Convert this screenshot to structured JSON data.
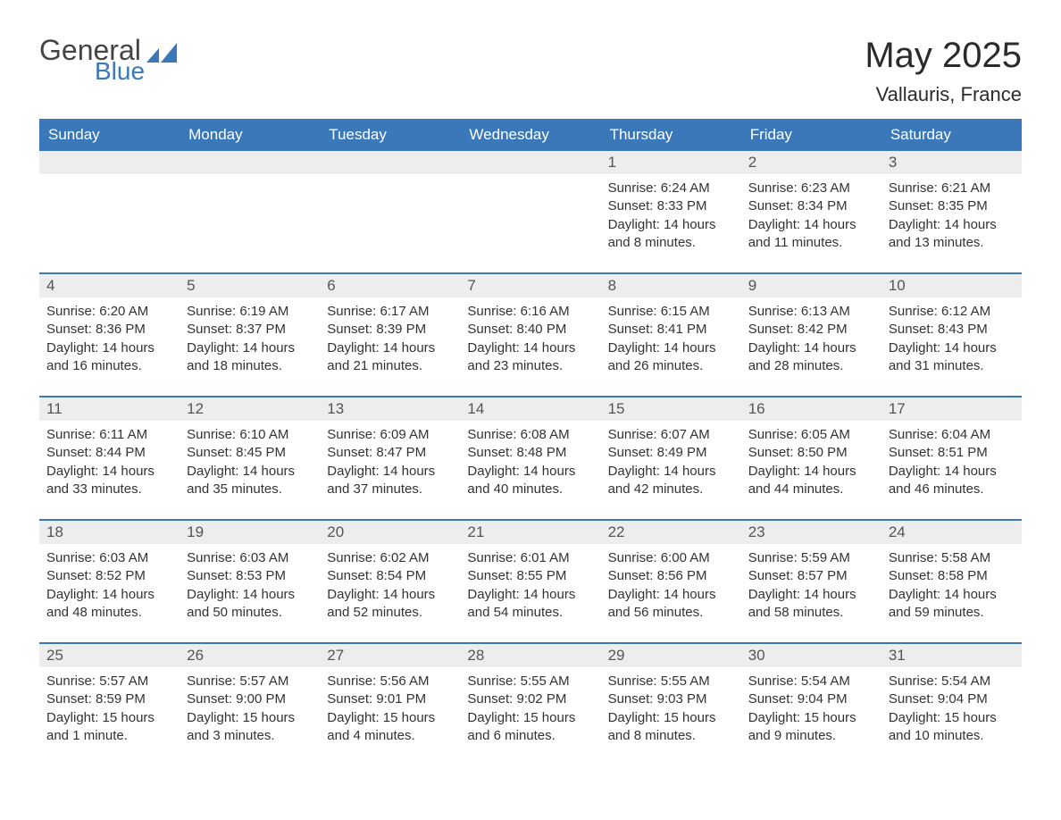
{
  "logo": {
    "general": "General",
    "blue": "Blue",
    "icon_color": "#3a78b9"
  },
  "title": "May 2025",
  "location": "Vallauris, France",
  "colors": {
    "header_bg": "#3a78b9",
    "header_text": "#ffffff",
    "daynum_bg": "#ededed",
    "text": "#333333",
    "rule": "#3a78b9"
  },
  "weekdays": [
    "Sunday",
    "Monday",
    "Tuesday",
    "Wednesday",
    "Thursday",
    "Friday",
    "Saturday"
  ],
  "weeks": [
    [
      {
        "n": "",
        "sr": "",
        "ss": "",
        "dl": ""
      },
      {
        "n": "",
        "sr": "",
        "ss": "",
        "dl": ""
      },
      {
        "n": "",
        "sr": "",
        "ss": "",
        "dl": ""
      },
      {
        "n": "",
        "sr": "",
        "ss": "",
        "dl": ""
      },
      {
        "n": "1",
        "sr": "Sunrise: 6:24 AM",
        "ss": "Sunset: 8:33 PM",
        "dl": "Daylight: 14 hours and 8 minutes."
      },
      {
        "n": "2",
        "sr": "Sunrise: 6:23 AM",
        "ss": "Sunset: 8:34 PM",
        "dl": "Daylight: 14 hours and 11 minutes."
      },
      {
        "n": "3",
        "sr": "Sunrise: 6:21 AM",
        "ss": "Sunset: 8:35 PM",
        "dl": "Daylight: 14 hours and 13 minutes."
      }
    ],
    [
      {
        "n": "4",
        "sr": "Sunrise: 6:20 AM",
        "ss": "Sunset: 8:36 PM",
        "dl": "Daylight: 14 hours and 16 minutes."
      },
      {
        "n": "5",
        "sr": "Sunrise: 6:19 AM",
        "ss": "Sunset: 8:37 PM",
        "dl": "Daylight: 14 hours and 18 minutes."
      },
      {
        "n": "6",
        "sr": "Sunrise: 6:17 AM",
        "ss": "Sunset: 8:39 PM",
        "dl": "Daylight: 14 hours and 21 minutes."
      },
      {
        "n": "7",
        "sr": "Sunrise: 6:16 AM",
        "ss": "Sunset: 8:40 PM",
        "dl": "Daylight: 14 hours and 23 minutes."
      },
      {
        "n": "8",
        "sr": "Sunrise: 6:15 AM",
        "ss": "Sunset: 8:41 PM",
        "dl": "Daylight: 14 hours and 26 minutes."
      },
      {
        "n": "9",
        "sr": "Sunrise: 6:13 AM",
        "ss": "Sunset: 8:42 PM",
        "dl": "Daylight: 14 hours and 28 minutes."
      },
      {
        "n": "10",
        "sr": "Sunrise: 6:12 AM",
        "ss": "Sunset: 8:43 PM",
        "dl": "Daylight: 14 hours and 31 minutes."
      }
    ],
    [
      {
        "n": "11",
        "sr": "Sunrise: 6:11 AM",
        "ss": "Sunset: 8:44 PM",
        "dl": "Daylight: 14 hours and 33 minutes."
      },
      {
        "n": "12",
        "sr": "Sunrise: 6:10 AM",
        "ss": "Sunset: 8:45 PM",
        "dl": "Daylight: 14 hours and 35 minutes."
      },
      {
        "n": "13",
        "sr": "Sunrise: 6:09 AM",
        "ss": "Sunset: 8:47 PM",
        "dl": "Daylight: 14 hours and 37 minutes."
      },
      {
        "n": "14",
        "sr": "Sunrise: 6:08 AM",
        "ss": "Sunset: 8:48 PM",
        "dl": "Daylight: 14 hours and 40 minutes."
      },
      {
        "n": "15",
        "sr": "Sunrise: 6:07 AM",
        "ss": "Sunset: 8:49 PM",
        "dl": "Daylight: 14 hours and 42 minutes."
      },
      {
        "n": "16",
        "sr": "Sunrise: 6:05 AM",
        "ss": "Sunset: 8:50 PM",
        "dl": "Daylight: 14 hours and 44 minutes."
      },
      {
        "n": "17",
        "sr": "Sunrise: 6:04 AM",
        "ss": "Sunset: 8:51 PM",
        "dl": "Daylight: 14 hours and 46 minutes."
      }
    ],
    [
      {
        "n": "18",
        "sr": "Sunrise: 6:03 AM",
        "ss": "Sunset: 8:52 PM",
        "dl": "Daylight: 14 hours and 48 minutes."
      },
      {
        "n": "19",
        "sr": "Sunrise: 6:03 AM",
        "ss": "Sunset: 8:53 PM",
        "dl": "Daylight: 14 hours and 50 minutes."
      },
      {
        "n": "20",
        "sr": "Sunrise: 6:02 AM",
        "ss": "Sunset: 8:54 PM",
        "dl": "Daylight: 14 hours and 52 minutes."
      },
      {
        "n": "21",
        "sr": "Sunrise: 6:01 AM",
        "ss": "Sunset: 8:55 PM",
        "dl": "Daylight: 14 hours and 54 minutes."
      },
      {
        "n": "22",
        "sr": "Sunrise: 6:00 AM",
        "ss": "Sunset: 8:56 PM",
        "dl": "Daylight: 14 hours and 56 minutes."
      },
      {
        "n": "23",
        "sr": "Sunrise: 5:59 AM",
        "ss": "Sunset: 8:57 PM",
        "dl": "Daylight: 14 hours and 58 minutes."
      },
      {
        "n": "24",
        "sr": "Sunrise: 5:58 AM",
        "ss": "Sunset: 8:58 PM",
        "dl": "Daylight: 14 hours and 59 minutes."
      }
    ],
    [
      {
        "n": "25",
        "sr": "Sunrise: 5:57 AM",
        "ss": "Sunset: 8:59 PM",
        "dl": "Daylight: 15 hours and 1 minute."
      },
      {
        "n": "26",
        "sr": "Sunrise: 5:57 AM",
        "ss": "Sunset: 9:00 PM",
        "dl": "Daylight: 15 hours and 3 minutes."
      },
      {
        "n": "27",
        "sr": "Sunrise: 5:56 AM",
        "ss": "Sunset: 9:01 PM",
        "dl": "Daylight: 15 hours and 4 minutes."
      },
      {
        "n": "28",
        "sr": "Sunrise: 5:55 AM",
        "ss": "Sunset: 9:02 PM",
        "dl": "Daylight: 15 hours and 6 minutes."
      },
      {
        "n": "29",
        "sr": "Sunrise: 5:55 AM",
        "ss": "Sunset: 9:03 PM",
        "dl": "Daylight: 15 hours and 8 minutes."
      },
      {
        "n": "30",
        "sr": "Sunrise: 5:54 AM",
        "ss": "Sunset: 9:04 PM",
        "dl": "Daylight: 15 hours and 9 minutes."
      },
      {
        "n": "31",
        "sr": "Sunrise: 5:54 AM",
        "ss": "Sunset: 9:04 PM",
        "dl": "Daylight: 15 hours and 10 minutes."
      }
    ]
  ]
}
